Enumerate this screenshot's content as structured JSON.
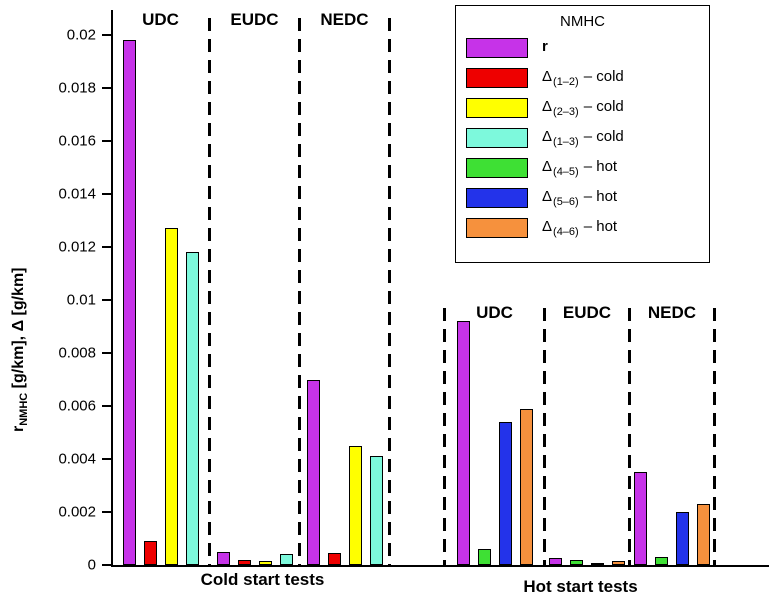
{
  "chart_data": {
    "type": "bar",
    "title": "",
    "ylabel_parts": {
      "prefix": "r",
      "sub": "NMHC",
      "rest": " [g/km], Δ [g/km]"
    },
    "ylim": [
      0,
      0.02
    ],
    "yticks": [
      "0.02",
      "0.018",
      "0.016",
      "0.014",
      "0.012",
      "0.01",
      "0.008",
      "0.006",
      "0.004",
      "0.002",
      "0"
    ],
    "ytick_values": [
      0.02,
      0.018,
      0.016,
      0.014,
      0.012,
      0.01,
      0.008,
      0.006,
      0.004,
      0.002,
      0
    ],
    "grid": "off",
    "legend_position": "top-right",
    "series": [
      {
        "name": "r",
        "color": "#C633E8"
      },
      {
        "name": "delta-1-2-cold",
        "color": "#EE0000"
      },
      {
        "name": "delta-2-3-cold",
        "color": "#FFFF00"
      },
      {
        "name": "delta-1-3-cold",
        "color": "#7DF9DC"
      },
      {
        "name": "delta-4-5-hot",
        "color": "#3EE034"
      },
      {
        "name": "delta-5-6-hot",
        "color": "#2333EA"
      },
      {
        "name": "delta-4-6-hot",
        "color": "#F6913D"
      }
    ],
    "legend": {
      "title": "NMHC",
      "entries": [
        {
          "main": "r",
          "sub": "",
          "suffix": ""
        },
        {
          "main": "Δ",
          "sub": "(1–2)",
          "suffix": "– cold"
        },
        {
          "main": "Δ",
          "sub": "(2–3)",
          "suffix": "– cold"
        },
        {
          "main": "Δ",
          "sub": "(1–3)",
          "suffix": "– cold"
        },
        {
          "main": "Δ",
          "sub": "(4–5)",
          "suffix": "– hot"
        },
        {
          "main": "Δ",
          "sub": "(5–6)",
          "suffix": "– hot"
        },
        {
          "main": "Δ",
          "sub": "(4–6)",
          "suffix": "– hot"
        }
      ]
    },
    "groups": [
      {
        "label": "Cold start tests",
        "series_indices": [
          0,
          1,
          2,
          3
        ],
        "sections": [
          {
            "name": "UDC",
            "values": [
              0.0198,
              0.0009,
              0.0127,
              0.0118
            ]
          },
          {
            "name": "EUDC",
            "values": [
              0.0005,
              0.0002,
              0.00015,
              0.0004
            ]
          },
          {
            "name": "NEDC",
            "values": [
              0.007,
              0.00045,
              0.0045,
              0.0041
            ]
          }
        ]
      },
      {
        "label": "Hot start tests",
        "series_indices": [
          0,
          4,
          5,
          6
        ],
        "sections": [
          {
            "name": "UDC",
            "values": [
              0.0092,
              0.0006,
              0.0054,
              0.0059
            ]
          },
          {
            "name": "EUDC",
            "values": [
              0.00025,
              0.0002,
              5e-05,
              0.00015
            ]
          },
          {
            "name": "NEDC",
            "values": [
              0.0035,
              0.0003,
              0.002,
              0.0023
            ]
          }
        ]
      }
    ]
  }
}
